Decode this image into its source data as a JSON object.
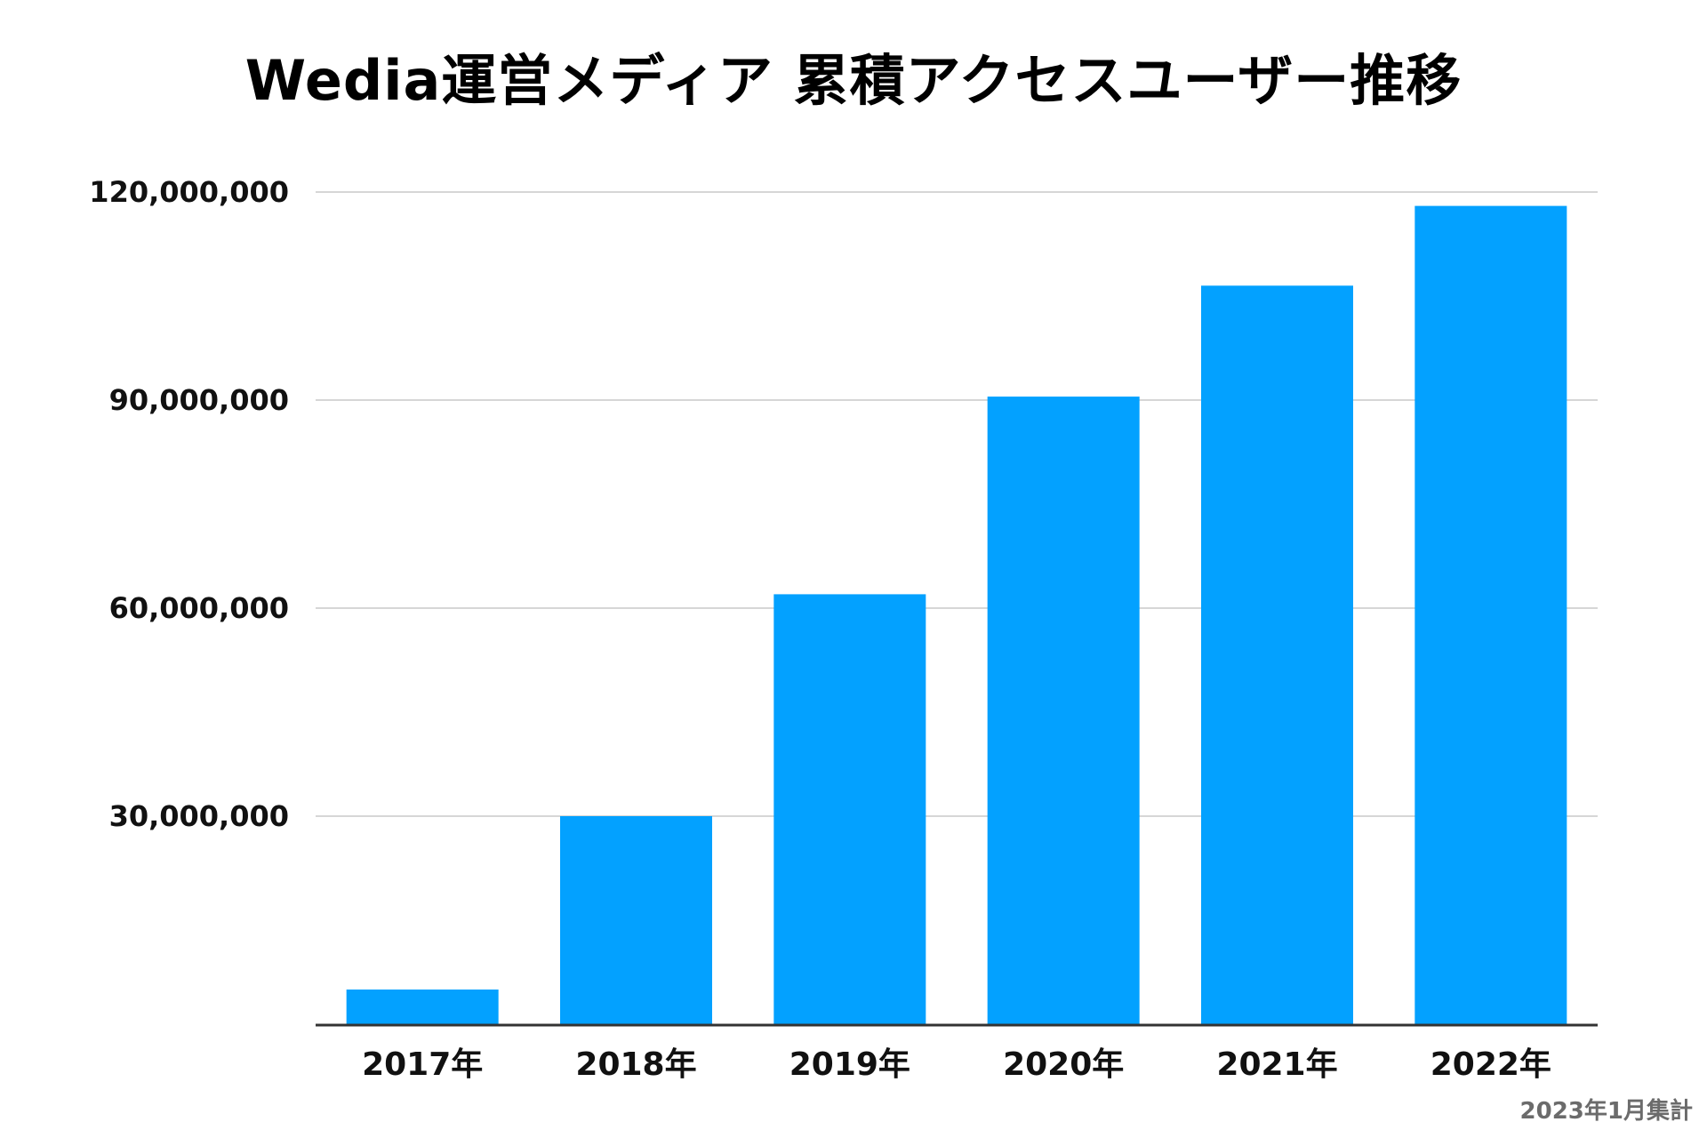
{
  "chart_data": {
    "type": "bar",
    "title": "Wedia運営メディア 累積アクセスユーザー推移",
    "categories": [
      "2017年",
      "2018年",
      "2019年",
      "2020年",
      "2021年",
      "2022年"
    ],
    "values": [
      5000000,
      30000000,
      62000000,
      90500000,
      106500000,
      118000000
    ],
    "ylim": [
      0,
      120000000
    ],
    "yticks": [
      30000000,
      60000000,
      90000000,
      120000000
    ],
    "ytick_labels": [
      "30,000,000",
      "60,000,000",
      "90,000,000",
      "120,000,000"
    ],
    "xlabel": "",
    "ylabel": "",
    "grid": true,
    "bar_color": "#03a1ff",
    "gridline_color": "#d6d6d6",
    "axis_color": "#333333"
  },
  "footnote": "2023年1月集計"
}
